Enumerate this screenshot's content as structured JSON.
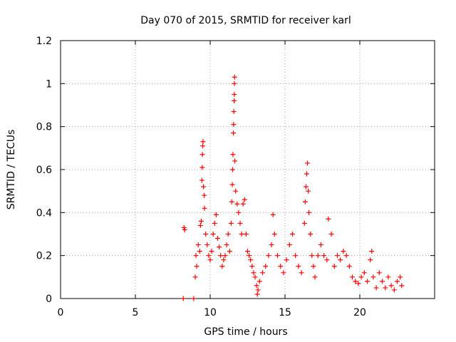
{
  "chart_data": {
    "type": "scatter",
    "title": "Day 070 of 2015, SRMTID for receiver karl",
    "xlabel": "GPS time / hours",
    "ylabel": "SRMTID / TECUs",
    "xlim": [
      0,
      25
    ],
    "ylim": [
      0,
      1.2
    ],
    "x_ticks": [
      0,
      5,
      10,
      15,
      20
    ],
    "x_tick_labels": [
      "0",
      "5",
      "10",
      "15",
      "20"
    ],
    "y_ticks": [
      0,
      0.2,
      0.4,
      0.6,
      0.8,
      1.0,
      1.2
    ],
    "y_tick_labels": [
      "0",
      "0.2",
      "0.4",
      "0.6",
      "0.8",
      "1",
      "1.2"
    ],
    "grid": true,
    "marker": "+",
    "series": [
      {
        "name": "SRMTID",
        "color": "#ff0000",
        "points": [
          [
            8.2,
            0.0
          ],
          [
            8.9,
            0.0
          ],
          [
            8.25,
            0.33
          ],
          [
            8.3,
            0.32
          ],
          [
            9.0,
            0.1
          ],
          [
            9.05,
            0.2
          ],
          [
            9.1,
            0.15
          ],
          [
            9.2,
            0.25
          ],
          [
            9.3,
            0.22
          ],
          [
            9.35,
            0.34
          ],
          [
            9.4,
            0.36
          ],
          [
            9.45,
            0.55
          ],
          [
            9.47,
            0.61
          ],
          [
            9.48,
            0.67
          ],
          [
            9.5,
            0.71
          ],
          [
            9.52,
            0.73
          ],
          [
            9.55,
            0.52
          ],
          [
            9.6,
            0.48
          ],
          [
            9.62,
            0.42
          ],
          [
            9.7,
            0.3
          ],
          [
            9.8,
            0.25
          ],
          [
            9.9,
            0.2
          ],
          [
            10.0,
            0.18
          ],
          [
            10.1,
            0.22
          ],
          [
            10.2,
            0.3
          ],
          [
            10.3,
            0.35
          ],
          [
            10.4,
            0.39
          ],
          [
            10.5,
            0.28
          ],
          [
            10.6,
            0.24
          ],
          [
            10.7,
            0.2
          ],
          [
            10.8,
            0.15
          ],
          [
            10.9,
            0.18
          ],
          [
            11.0,
            0.2
          ],
          [
            11.1,
            0.25
          ],
          [
            11.2,
            0.3
          ],
          [
            11.3,
            0.22
          ],
          [
            11.4,
            0.35
          ],
          [
            11.45,
            0.45
          ],
          [
            11.48,
            0.53
          ],
          [
            11.5,
            0.6
          ],
          [
            11.52,
            0.67
          ],
          [
            11.55,
            0.77
          ],
          [
            11.56,
            0.81
          ],
          [
            11.58,
            0.87
          ],
          [
            11.6,
            0.92
          ],
          [
            11.61,
            0.95
          ],
          [
            11.62,
            1.0
          ],
          [
            11.63,
            1.03
          ],
          [
            11.65,
            0.64
          ],
          [
            11.7,
            0.5
          ],
          [
            11.8,
            0.44
          ],
          [
            11.9,
            0.4
          ],
          [
            12.0,
            0.35
          ],
          [
            12.1,
            0.3
          ],
          [
            12.2,
            0.44
          ],
          [
            12.3,
            0.46
          ],
          [
            12.4,
            0.3
          ],
          [
            12.5,
            0.22
          ],
          [
            12.6,
            0.2
          ],
          [
            12.7,
            0.18
          ],
          [
            12.8,
            0.15
          ],
          [
            12.9,
            0.12
          ],
          [
            13.0,
            0.1
          ],
          [
            13.1,
            0.06
          ],
          [
            13.15,
            0.02
          ],
          [
            13.2,
            0.04
          ],
          [
            13.3,
            0.08
          ],
          [
            13.5,
            0.12
          ],
          [
            13.7,
            0.15
          ],
          [
            13.9,
            0.2
          ],
          [
            14.1,
            0.25
          ],
          [
            14.2,
            0.39
          ],
          [
            14.3,
            0.3
          ],
          [
            14.5,
            0.2
          ],
          [
            14.7,
            0.15
          ],
          [
            14.9,
            0.12
          ],
          [
            15.1,
            0.18
          ],
          [
            15.3,
            0.25
          ],
          [
            15.5,
            0.3
          ],
          [
            15.7,
            0.2
          ],
          [
            15.9,
            0.15
          ],
          [
            16.1,
            0.12
          ],
          [
            16.3,
            0.35
          ],
          [
            16.35,
            0.45
          ],
          [
            16.4,
            0.52
          ],
          [
            16.45,
            0.58
          ],
          [
            16.5,
            0.63
          ],
          [
            16.55,
            0.5
          ],
          [
            16.6,
            0.4
          ],
          [
            16.7,
            0.3
          ],
          [
            16.8,
            0.2
          ],
          [
            16.9,
            0.15
          ],
          [
            17.0,
            0.1
          ],
          [
            17.2,
            0.2
          ],
          [
            17.4,
            0.25
          ],
          [
            17.6,
            0.2
          ],
          [
            17.8,
            0.18
          ],
          [
            17.9,
            0.37
          ],
          [
            18.1,
            0.3
          ],
          [
            18.3,
            0.15
          ],
          [
            18.5,
            0.2
          ],
          [
            18.7,
            0.18
          ],
          [
            18.9,
            0.22
          ],
          [
            19.1,
            0.2
          ],
          [
            19.3,
            0.15
          ],
          [
            19.5,
            0.1
          ],
          [
            19.7,
            0.08
          ],
          [
            19.9,
            0.07
          ],
          [
            20.1,
            0.1
          ],
          [
            20.3,
            0.12
          ],
          [
            20.5,
            0.08
          ],
          [
            20.7,
            0.18
          ],
          [
            20.8,
            0.22
          ],
          [
            20.9,
            0.1
          ],
          [
            21.1,
            0.05
          ],
          [
            21.3,
            0.12
          ],
          [
            21.5,
            0.08
          ],
          [
            21.7,
            0.05
          ],
          [
            21.9,
            0.1
          ],
          [
            22.1,
            0.06
          ],
          [
            22.3,
            0.04
          ],
          [
            22.5,
            0.08
          ],
          [
            22.7,
            0.1
          ],
          [
            22.8,
            0.06
          ]
        ]
      }
    ]
  }
}
